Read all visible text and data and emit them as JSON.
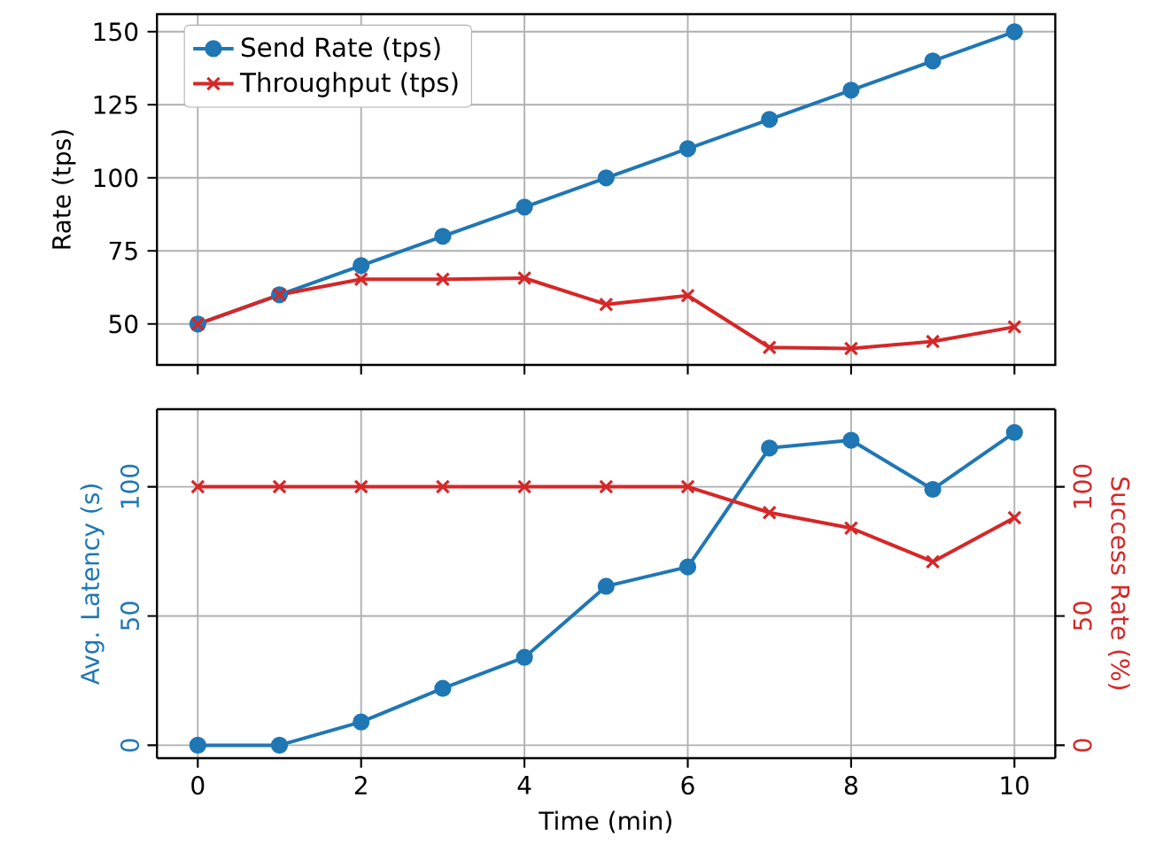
{
  "chart_data": [
    {
      "type": "line",
      "x": [
        0,
        1,
        2,
        3,
        4,
        5,
        6,
        7,
        8,
        9,
        10
      ],
      "ylabel": "Rate (tps)",
      "xlim": [
        -0.5,
        10.5
      ],
      "xticks": [
        0,
        2,
        4,
        6,
        8,
        10
      ],
      "ylim": [
        36,
        156
      ],
      "yticks": [
        50,
        75,
        100,
        125,
        150
      ],
      "tick_labels": "y",
      "grid": true,
      "legend": "top left",
      "series": [
        {
          "name": "Send Rate (tps)",
          "color": "#1f77b4",
          "marker": "circle",
          "values": [
            50,
            60,
            70,
            80,
            90,
            100,
            110,
            120,
            130,
            140,
            150
          ]
        },
        {
          "name": "Throughput (tps)",
          "color": "#d62728",
          "marker": "cross",
          "values": [
            50,
            60,
            65.3,
            65.3,
            65.7,
            56.7,
            59.7,
            42,
            41.6,
            44,
            49
          ]
        }
      ]
    },
    {
      "type": "line",
      "x": [
        0,
        1,
        2,
        3,
        4,
        5,
        6,
        7,
        8,
        9,
        10
      ],
      "xlabel": "Time (min)",
      "ylabel": "Avg. Latency (s)",
      "y2label": "Success Rate (%)",
      "xlim": [
        -0.5,
        10.5
      ],
      "xticks": [
        0,
        2,
        4,
        6,
        8,
        10
      ],
      "ylim": [
        -5,
        130
      ],
      "yticks": [
        0,
        50,
        100
      ],
      "y2lim": [
        -5,
        130
      ],
      "y2ticks": [
        0,
        50,
        100
      ],
      "grid": true,
      "series": [
        {
          "color": "#1f77b4",
          "marker": "circle",
          "values": [
            0,
            0,
            9,
            22,
            34,
            61.5,
            69,
            115,
            118,
            99,
            121
          ]
        },
        {
          "color": "#d62728",
          "marker": "cross",
          "axis": "y2",
          "values": [
            100,
            100,
            100,
            100,
            100,
            100,
            100,
            90,
            84,
            71,
            88
          ]
        }
      ]
    }
  ]
}
